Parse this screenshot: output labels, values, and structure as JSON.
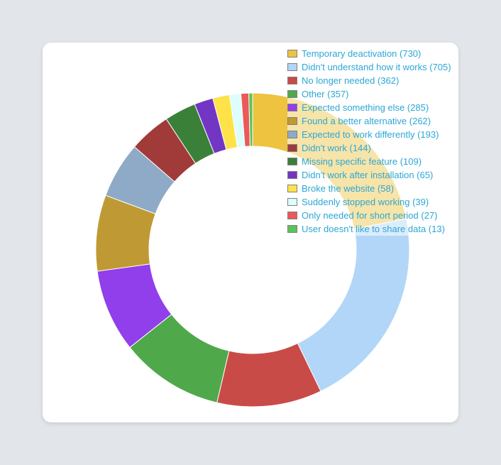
{
  "chart_data": {
    "type": "pie",
    "donut": true,
    "legend_position": "top-right",
    "slices": [
      {
        "label": "Temporary deactivation",
        "value": 730,
        "legend_text": "Temporary deactivation (730)",
        "color": "#edc33f"
      },
      {
        "label": "Didn't understand how it works",
        "value": 705,
        "legend_text": "Didn't understand how it works (705)",
        "color": "#b1d6f7"
      },
      {
        "label": "No longer needed",
        "value": 362,
        "legend_text": "No longer needed (362)",
        "color": "#c94b47"
      },
      {
        "label": "Other",
        "value": 357,
        "legend_text": "Other (357)",
        "color": "#4fa94b"
      },
      {
        "label": "Expected something else",
        "value": 285,
        "legend_text": "Expected something else (285)",
        "color": "#913eeb"
      },
      {
        "label": "Found a better alternative",
        "value": 262,
        "legend_text": "Found a better alternative (262)",
        "color": "#bf9934"
      },
      {
        "label": "Expected to work differently",
        "value": 193,
        "legend_text": "Expected to work differently (193)",
        "color": "#8faac7"
      },
      {
        "label": "Didn't work",
        "value": 144,
        "legend_text": "Didn't work (144)",
        "color": "#a03b39"
      },
      {
        "label": "Missing specific feature",
        "value": 109,
        "legend_text": "Missing specific feature (109)",
        "color": "#3b8038"
      },
      {
        "label": "Didn't work after installation",
        "value": 65,
        "legend_text": "Didn't work after installation (65)",
        "color": "#7335c4"
      },
      {
        "label": "Broke the website",
        "value": 58,
        "legend_text": "Broke the website (58)",
        "color": "#fde349"
      },
      {
        "label": "Suddenly stopped working",
        "value": 39,
        "legend_text": "Suddenly stopped working (39)",
        "color": "#dcfefd"
      },
      {
        "label": "Only needed for short period",
        "value": 27,
        "legend_text": "Only needed for short period (27)",
        "color": "#ec5959"
      },
      {
        "label": "User doesn't like to share data",
        "value": 13,
        "legend_text": "User doesn't like to share data (13)",
        "color": "#5ac45a"
      }
    ]
  }
}
